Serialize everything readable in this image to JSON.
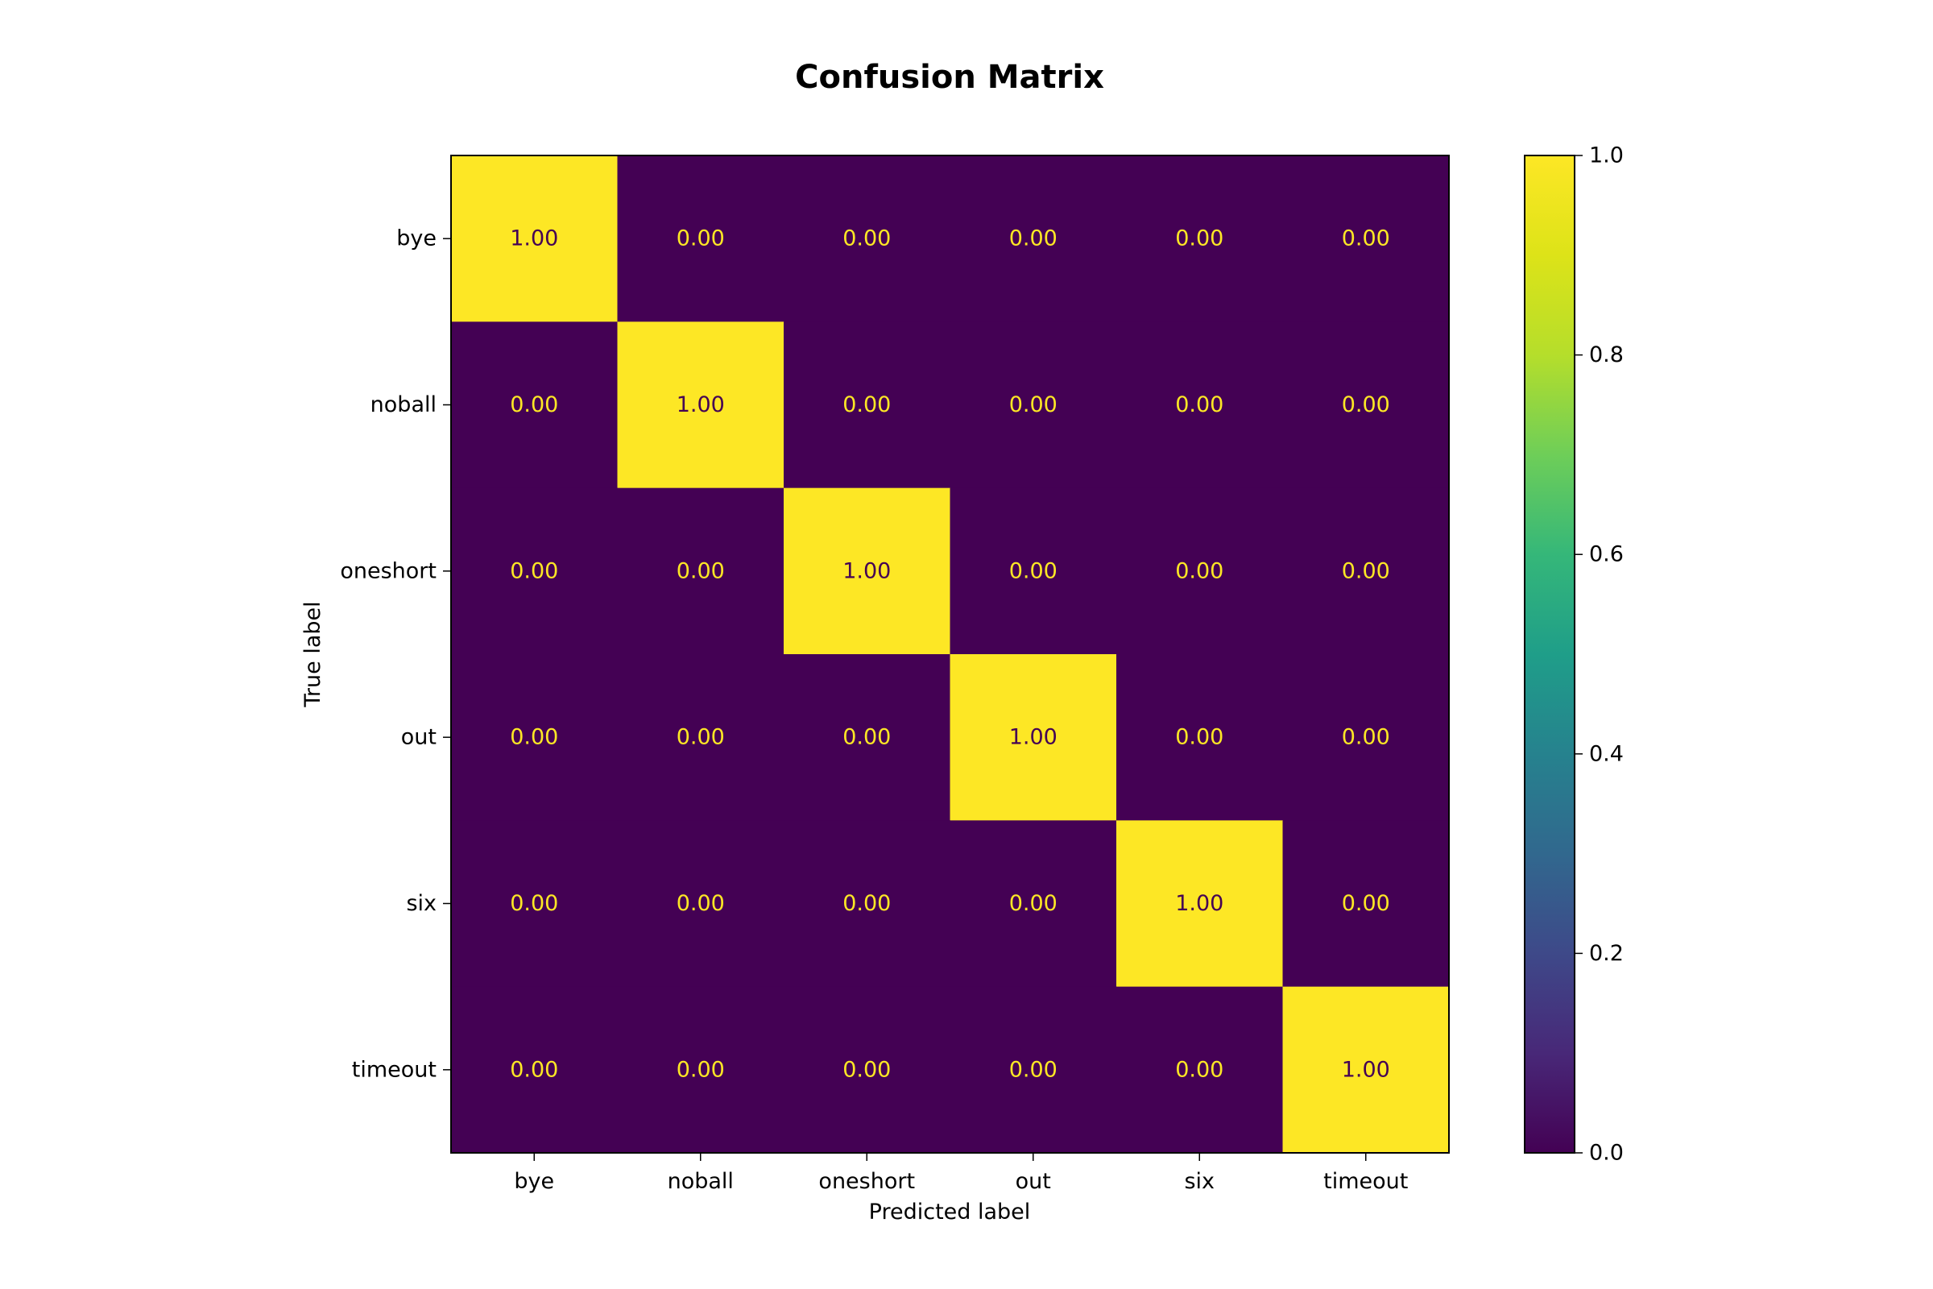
{
  "chart_data": {
    "type": "heatmap",
    "title": "Confusion Matrix",
    "xlabel": "Predicted label",
    "ylabel": "True label",
    "x_categories": [
      "bye",
      "noball",
      "oneshort",
      "out",
      "six",
      "timeout"
    ],
    "y_categories": [
      "bye",
      "noball",
      "oneshort",
      "out",
      "six",
      "timeout"
    ],
    "values": [
      [
        1.0,
        0.0,
        0.0,
        0.0,
        0.0,
        0.0
      ],
      [
        0.0,
        1.0,
        0.0,
        0.0,
        0.0,
        0.0
      ],
      [
        0.0,
        0.0,
        1.0,
        0.0,
        0.0,
        0.0
      ],
      [
        0.0,
        0.0,
        0.0,
        1.0,
        0.0,
        0.0
      ],
      [
        0.0,
        0.0,
        0.0,
        0.0,
        1.0,
        0.0
      ],
      [
        0.0,
        0.0,
        0.0,
        0.0,
        0.0,
        1.0
      ]
    ],
    "cell_labels": [
      [
        "1.00",
        "0.00",
        "0.00",
        "0.00",
        "0.00",
        "0.00"
      ],
      [
        "0.00",
        "1.00",
        "0.00",
        "0.00",
        "0.00",
        "0.00"
      ],
      [
        "0.00",
        "0.00",
        "1.00",
        "0.00",
        "0.00",
        "0.00"
      ],
      [
        "0.00",
        "0.00",
        "0.00",
        "1.00",
        "0.00",
        "0.00"
      ],
      [
        "0.00",
        "0.00",
        "0.00",
        "0.00",
        "1.00",
        "0.00"
      ],
      [
        "0.00",
        "0.00",
        "0.00",
        "0.00",
        "0.00",
        "1.00"
      ]
    ],
    "colormap": "viridis",
    "colorbar": {
      "range": [
        0.0,
        1.0
      ],
      "ticks": [
        0.0,
        0.2,
        0.4,
        0.6,
        0.8,
        1.0
      ],
      "tick_labels": [
        "0.0",
        "0.2",
        "0.4",
        "0.6",
        "0.8",
        "1.0"
      ],
      "placement": "right"
    },
    "colors": {
      "low": "#440154",
      "high": "#fde725",
      "text_on_low": "#fde725",
      "text_on_high": "#440154"
    },
    "grid": false
  }
}
